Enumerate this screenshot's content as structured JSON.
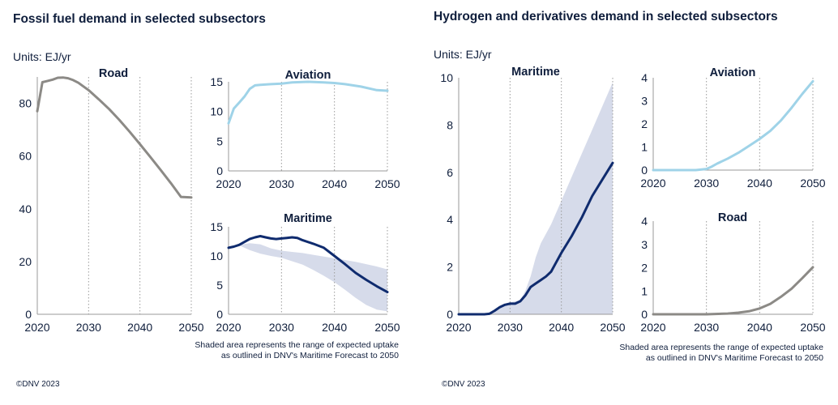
{
  "fossil": {
    "title": "Fossil fuel demand in selected subsectors",
    "units": "Units: EJ/yr",
    "note_line1": "Shaded area represents the range of expected uptake",
    "note_line2": "as outlined in DNV's Maritime Forecast to 2050",
    "copyright": "©DNV 2023"
  },
  "hydrogen": {
    "title": "Hydrogen and derivatives demand in selected subsectors",
    "units": "Units: EJ/yr",
    "note_line1": "Shaded area represents the range of expected uptake",
    "note_line2": "as outlined in DNV's Maritime Forecast to 2050",
    "copyright": "©DNV 2023"
  },
  "colors": {
    "road": "#8c8a86",
    "aviation": "#9fd3e8",
    "maritime": "#0f2b6e",
    "band": "#d6dbea",
    "text": "#0f1e3c"
  },
  "chart_data": [
    {
      "id": "fossil-road",
      "type": "line",
      "title": "Road",
      "xlim": [
        2020,
        2050
      ],
      "ylim": [
        0,
        90
      ],
      "xticks": [
        2020,
        2030,
        2040,
        2050
      ],
      "yticks": [
        0,
        20,
        40,
        60,
        80
      ],
      "series": [
        {
          "color": "#8c8a86",
          "x": [
            2020,
            2021,
            2022,
            2023,
            2024,
            2025,
            2026,
            2027,
            2028,
            2030,
            2032,
            2034,
            2036,
            2038,
            2040,
            2042,
            2044,
            2046,
            2048,
            2050
          ],
          "y": [
            77,
            88,
            88.5,
            89,
            89.7,
            89.8,
            89.5,
            88.8,
            87.8,
            85,
            81.5,
            77.8,
            73.7,
            69.2,
            64.5,
            59.7,
            54.8,
            49.8,
            44.5,
            44.3
          ]
        }
      ]
    },
    {
      "id": "fossil-aviation",
      "type": "line",
      "title": "Aviation",
      "xlim": [
        2020,
        2050
      ],
      "ylim": [
        0,
        15
      ],
      "xticks": [
        2020,
        2030,
        2040,
        2050
      ],
      "yticks": [
        0,
        5,
        10,
        15
      ],
      "series": [
        {
          "color": "#9fd3e8",
          "x": [
            2020,
            2021,
            2022,
            2023,
            2024,
            2025,
            2026,
            2028,
            2030,
            2032,
            2035,
            2038,
            2040,
            2042,
            2045,
            2048,
            2050
          ],
          "y": [
            8,
            10.5,
            11.5,
            12.5,
            13.8,
            14.4,
            14.5,
            14.6,
            14.7,
            14.9,
            15.0,
            14.9,
            14.8,
            14.6,
            14.2,
            13.6,
            13.5
          ]
        }
      ]
    },
    {
      "id": "fossil-maritime",
      "type": "area",
      "title": "Maritime",
      "xlim": [
        2020,
        2050
      ],
      "ylim": [
        0,
        15
      ],
      "xticks": [
        2020,
        2030,
        2040,
        2050
      ],
      "yticks": [
        0,
        5,
        10,
        15
      ],
      "band": {
        "color": "#d6dbea",
        "x": [
          2020,
          2022,
          2024,
          2026,
          2028,
          2030,
          2032,
          2034,
          2036,
          2038,
          2040,
          2042,
          2044,
          2046,
          2048,
          2050
        ],
        "upper": [
          11.5,
          11.9,
          12.2,
          12.0,
          11.3,
          10.9,
          10.7,
          10.5,
          10.2,
          9.9,
          9.6,
          9.3,
          9.0,
          8.6,
          8.2,
          7.7
        ],
        "lower": [
          11.5,
          11.8,
          11.0,
          10.4,
          10.0,
          9.7,
          9.1,
          8.5,
          7.6,
          6.6,
          5.5,
          4.2,
          2.8,
          1.6,
          0.8,
          0.5
        ]
      },
      "series": [
        {
          "color": "#0f2b6e",
          "x": [
            2020,
            2021,
            2022,
            2023,
            2024,
            2025,
            2026,
            2027,
            2028,
            2029,
            2030,
            2031,
            2032,
            2033,
            2034,
            2036,
            2038,
            2040,
            2042,
            2044,
            2046,
            2048,
            2050
          ],
          "y": [
            11.4,
            11.6,
            11.9,
            12.4,
            12.9,
            13.2,
            13.4,
            13.2,
            13.0,
            12.9,
            13.0,
            13.1,
            13.2,
            13.1,
            12.7,
            12.1,
            11.4,
            10.0,
            8.6,
            7.1,
            5.9,
            4.8,
            3.8
          ]
        }
      ]
    },
    {
      "id": "h2-maritime",
      "type": "area",
      "title": "Maritime",
      "xlim": [
        2020,
        2050
      ],
      "ylim": [
        0,
        10
      ],
      "xticks": [
        2020,
        2030,
        2040,
        2050
      ],
      "yticks": [
        0,
        2,
        4,
        6,
        8,
        10
      ],
      "band": {
        "color": "#d6dbea",
        "x": [
          2020,
          2025,
          2028,
          2030,
          2032,
          2033,
          2034,
          2035,
          2036,
          2038,
          2040,
          2042,
          2044,
          2046,
          2048,
          2050
        ],
        "upper": [
          0,
          0,
          0.3,
          0.5,
          0.6,
          1.0,
          1.6,
          2.4,
          3.0,
          3.8,
          4.8,
          5.8,
          6.8,
          7.8,
          8.8,
          9.8
        ],
        "lower": [
          0,
          0,
          0,
          0,
          0,
          0,
          0,
          0,
          0,
          0,
          0,
          0,
          0,
          0,
          0,
          0
        ]
      },
      "series": [
        {
          "color": "#0f2b6e",
          "x": [
            2020,
            2025,
            2026,
            2027,
            2028,
            2029,
            2030,
            2031,
            2032,
            2033,
            2034,
            2035,
            2036,
            2037,
            2038,
            2039,
            2040,
            2042,
            2044,
            2046,
            2048,
            2050
          ],
          "y": [
            0,
            0,
            0.02,
            0.15,
            0.3,
            0.4,
            0.45,
            0.45,
            0.55,
            0.8,
            1.15,
            1.3,
            1.45,
            1.6,
            1.8,
            2.2,
            2.6,
            3.3,
            4.1,
            5.0,
            5.7,
            6.4
          ]
        }
      ]
    },
    {
      "id": "h2-aviation",
      "type": "line",
      "title": "Aviation",
      "xlim": [
        2020,
        2050
      ],
      "ylim": [
        0,
        4
      ],
      "xticks": [
        2020,
        2030,
        2040,
        2050
      ],
      "yticks": [
        0,
        1,
        2,
        3,
        4
      ],
      "series": [
        {
          "color": "#9fd3e8",
          "x": [
            2020,
            2028,
            2030,
            2031,
            2032,
            2034,
            2036,
            2038,
            2040,
            2042,
            2044,
            2046,
            2048,
            2050
          ],
          "y": [
            0,
            0,
            0.05,
            0.15,
            0.28,
            0.5,
            0.75,
            1.05,
            1.35,
            1.7,
            2.15,
            2.7,
            3.3,
            3.85
          ]
        }
      ]
    },
    {
      "id": "h2-road",
      "type": "line",
      "title": "Road",
      "xlim": [
        2020,
        2050
      ],
      "ylim": [
        0,
        4
      ],
      "xticks": [
        2020,
        2030,
        2040,
        2050
      ],
      "yticks": [
        0,
        1,
        2,
        3,
        4
      ],
      "series": [
        {
          "color": "#8c8a86",
          "x": [
            2020,
            2030,
            2034,
            2036,
            2038,
            2040,
            2042,
            2044,
            2046,
            2048,
            2050
          ],
          "y": [
            0,
            0,
            0.03,
            0.07,
            0.13,
            0.25,
            0.45,
            0.75,
            1.1,
            1.55,
            2.02
          ]
        }
      ]
    }
  ]
}
